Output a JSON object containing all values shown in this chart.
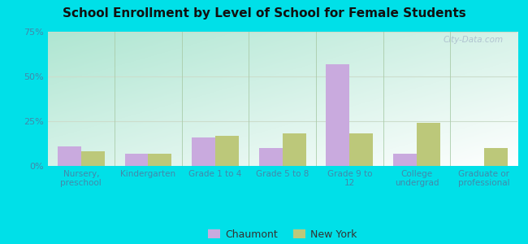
{
  "title": "School Enrollment by Level of School for Female Students",
  "categories": [
    "Nursery,\npreschool",
    "Kindergarten",
    "Grade 1 to 4",
    "Grade 5 to 8",
    "Grade 9 to\n12",
    "College\nundergrad",
    "Graduate or\nprofessional"
  ],
  "chaumont": [
    11,
    7,
    16,
    10,
    57,
    7,
    0
  ],
  "new_york": [
    8,
    7,
    17,
    18,
    18,
    24,
    10
  ],
  "chaumont_color": "#c9aade",
  "new_york_color": "#bcc87a",
  "background_color": "#00e0e8",
  "title_color": "#111111",
  "ylim": [
    0,
    75
  ],
  "yticks": [
    0,
    25,
    50,
    75
  ],
  "ytick_labels": [
    "0%",
    "25%",
    "50%",
    "75%"
  ],
  "bar_width": 0.35,
  "legend_labels": [
    "Chaumont",
    "New York"
  ],
  "watermark": "City-Data.com",
  "grid_color": "#ccddcc",
  "separator_color": "#aaccaa",
  "tick_label_color": "#4488aa"
}
